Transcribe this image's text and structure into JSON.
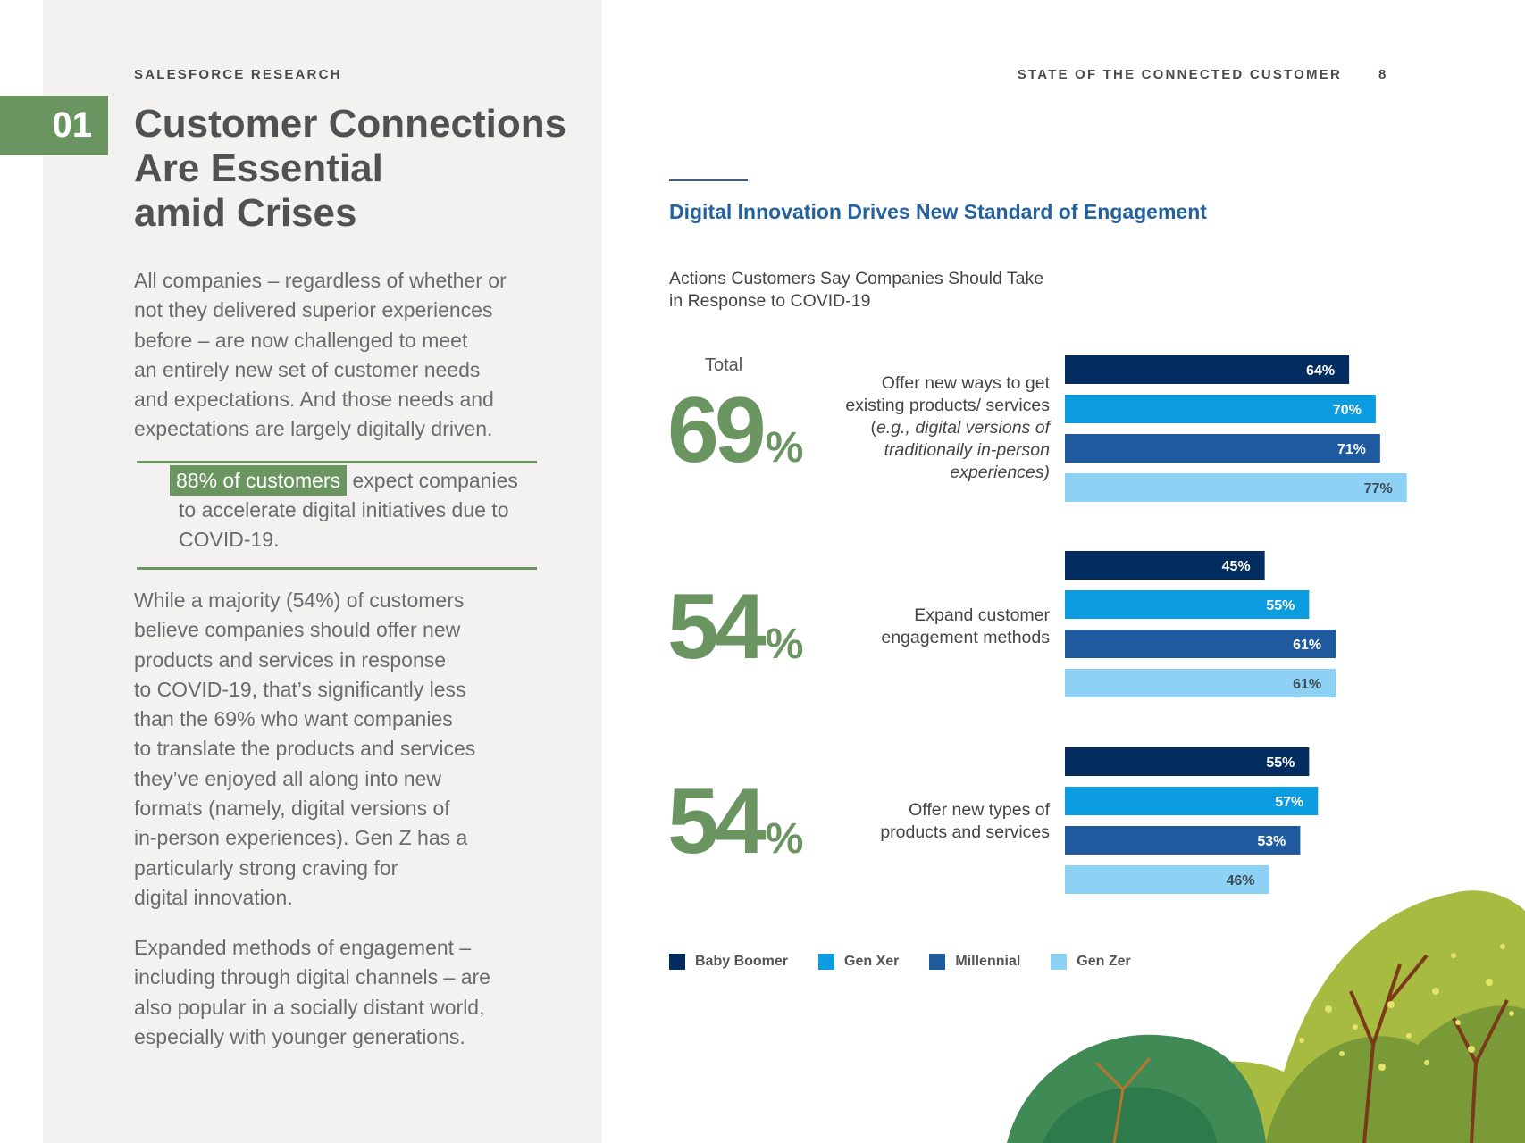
{
  "header": {
    "left_eyebrow": "SALESFORCE RESEARCH",
    "right_eyebrow": "STATE OF THE CONNECTED CUSTOMER",
    "page_number": "8"
  },
  "section": {
    "number": "01",
    "title": "Customer Connections\nAre Essential\namid Crises"
  },
  "body": {
    "para1": "All companies – regardless of whether or\nnot they delivered superior experiences\nbefore – are now challenged to meet\nan entirely new set of customer needs\nand expectations. And those needs and\nexpectations are largely digitally driven.",
    "callout_highlight": "88% of customers",
    "callout_rest": " expect companies to accelerate digital initiatives due to COVID-19.",
    "para2": "While a majority (54%) of customers\nbelieve companies should offer new\nproducts and services in response\nto COVID-19, that’s significantly less\nthan the 69% who want companies\nto translate the products and services\nthey’ve enjoyed all along into new\nformats (namely, digital versions of\nin-person experiences). Gen Z has a\nparticularly strong craving for\ndigital innovation.",
    "para3": "Expanded methods of engagement –\nincluding through digital channels – are\nalso popular in a socially distant world,\nespecially with younger generations."
  },
  "chart_data": {
    "type": "bar",
    "orientation": "horizontal",
    "title": "Digital Innovation Drives New Standard of Engagement",
    "subtitle": "Actions Customers Say Companies Should Take in Response to COVID-19",
    "total_label": "Total",
    "categories": [
      {
        "label_plain": "Offer new ways to get existing products/ services (",
        "label_italic": "e.g., digital versions of traditionally in-person experiences)",
        "total": "69",
        "total_suffix": "%"
      },
      {
        "label_plain": "Expand customer engagement methods",
        "label_italic": "",
        "total": "54",
        "total_suffix": "%"
      },
      {
        "label_plain": "Offer new types of products and services",
        "label_italic": "",
        "total": "54",
        "total_suffix": "%"
      }
    ],
    "series": [
      {
        "name": "Baby Boomer",
        "color": "#032d60",
        "label_color": "#ffffff",
        "values": [
          64,
          45,
          55
        ]
      },
      {
        "name": "Gen Xer",
        "color": "#0b9ddf",
        "label_color": "#ffffff",
        "values": [
          70,
          55,
          57
        ]
      },
      {
        "name": "Millennial",
        "color": "#1f5a9e",
        "label_color": "#ffffff",
        "values": [
          71,
          61,
          53
        ]
      },
      {
        "name": "Gen Zer",
        "color": "#8dd2f5",
        "label_color": "#3c4a55",
        "values": [
          77,
          61,
          46
        ]
      }
    ],
    "value_suffix": "%",
    "xlim": [
      0,
      100
    ],
    "legend_position": "bottom"
  }
}
